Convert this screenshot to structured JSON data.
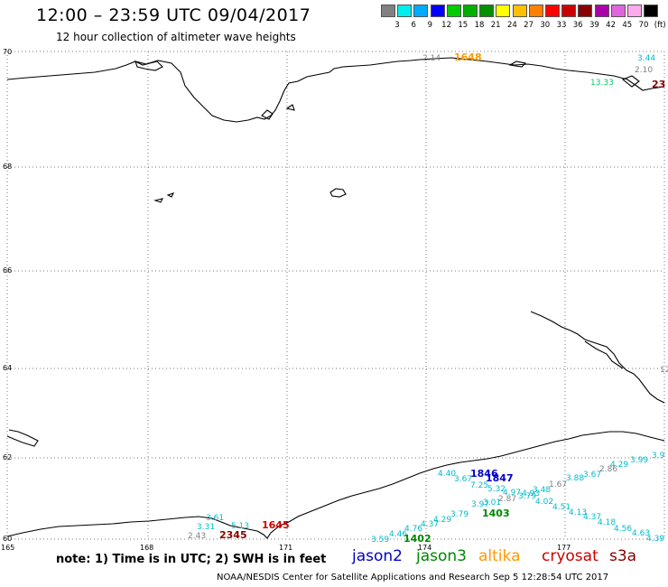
{
  "title": "12:00 – 23:59 UTC 09/04/2017",
  "subtitle": "12 hour collection of altimeter wave heights",
  "scale": {
    "unit": "(ft)",
    "colors": [
      "#808080",
      "#00eeee",
      "#00aaff",
      "#0000ff",
      "#00cc00",
      "#00b000",
      "#009000",
      "#ffff00",
      "#ffc000",
      "#ff8000",
      "#ff0000",
      "#cc0000",
      "#880000",
      "#aa00aa",
      "#dd66dd",
      "#ffaaee",
      "#000000"
    ],
    "labels": [
      "3",
      "6",
      "9",
      "12",
      "15",
      "18",
      "21",
      "24",
      "27",
      "30",
      "33",
      "36",
      "39",
      "42",
      "45",
      "70"
    ]
  },
  "axes": {
    "lat_labels": [
      "70",
      "68",
      "66",
      "64",
      "62",
      "60"
    ],
    "lon_labels": [
      "165",
      "168",
      "171",
      "174",
      "177"
    ]
  },
  "note": "note: 1) Time is in UTC; 2) SWH is in feet",
  "satellites": [
    {
      "name": "jason2",
      "color": "#0000cc"
    },
    {
      "name": "jason3",
      "color": "#008800"
    },
    {
      "name": "altika",
      "color": "#ff9900"
    },
    {
      "name": "cryosat",
      "color": "#cc0000"
    },
    {
      "name": "s3a",
      "color": "#880000"
    }
  ],
  "credit": "NOAA/NESDIS Center for Satellite Applications and Research   Sep  5 12:28:54 UTC 2017",
  "wave_labels": [
    {
      "t": "2.14",
      "c": "#808080"
    },
    {
      "t": "1648",
      "c": "#ff9900",
      "bold": true
    },
    {
      "t": "3.44",
      "c": "#00bbcc"
    },
    {
      "t": "2.10",
      "c": "#808080"
    },
    {
      "t": "13.33",
      "c": "#00cc66"
    },
    {
      "t": "23",
      "c": "#880000",
      "bold": true
    },
    {
      "t": "12",
      "c": "#808080"
    },
    {
      "t": "3.9",
      "c": "#00bbcc"
    },
    {
      "t": "3.99",
      "c": "#00bbcc"
    },
    {
      "t": "4.29",
      "c": "#00bbcc"
    },
    {
      "t": "2.86",
      "c": "#808080"
    },
    {
      "t": "3.67",
      "c": "#00bbcc"
    },
    {
      "t": "3.88",
      "c": "#00bbcc"
    },
    {
      "t": "1.67",
      "c": "#808080"
    },
    {
      "t": "3.48",
      "c": "#00bbcc"
    },
    {
      "t": "1846",
      "c": "#0000cc",
      "bold": true
    },
    {
      "t": "4.40",
      "c": "#00bbcc"
    },
    {
      "t": "3.67",
      "c": "#00bbcc"
    },
    {
      "t": "1847",
      "c": "#0000cc",
      "bold": true
    },
    {
      "t": "7.25",
      "c": "#00bbcc"
    },
    {
      "t": "5.32",
      "c": "#00bbcc"
    },
    {
      "t": "4.97",
      "c": "#00bbcc"
    },
    {
      "t": "3.79",
      "c": "#00bbcc"
    },
    {
      "t": "4.93",
      "c": "#00bbcc"
    },
    {
      "t": "2.87",
      "c": "#808080"
    },
    {
      "t": "4.02",
      "c": "#00bbcc"
    },
    {
      "t": "3.97",
      "c": "#00bbcc"
    },
    {
      "t": "3.01",
      "c": "#00bbcc"
    },
    {
      "t": "4.51",
      "c": "#00bbcc"
    },
    {
      "t": "1403",
      "c": "#008800",
      "bold": true
    },
    {
      "t": "3.79",
      "c": "#00bbcc"
    },
    {
      "t": "4.13",
      "c": "#00bbcc"
    },
    {
      "t": "4.29",
      "c": "#00bbcc"
    },
    {
      "t": "4.37",
      "c": "#00bbcc"
    },
    {
      "t": "4.37",
      "c": "#00bbcc"
    },
    {
      "t": "4.18",
      "c": "#00bbcc"
    },
    {
      "t": "4.76",
      "c": "#00bbcc"
    },
    {
      "t": "4.56",
      "c": "#00bbcc"
    },
    {
      "t": "4.46",
      "c": "#00bbcc"
    },
    {
      "t": "4.63",
      "c": "#00bbcc"
    },
    {
      "t": "3.59",
      "c": "#00bbcc"
    },
    {
      "t": "1402",
      "c": "#008800",
      "bold": true
    },
    {
      "t": "4.39",
      "c": "#00bbcc"
    },
    {
      "t": "3.61",
      "c": "#00bbcc"
    },
    {
      "t": "3.31",
      "c": "#00bbcc"
    },
    {
      "t": "5.13",
      "c": "#00bbcc"
    },
    {
      "t": "1645",
      "c": "#cc0000",
      "bold": true
    },
    {
      "t": "2.43",
      "c": "#808080"
    },
    {
      "t": "2345",
      "c": "#880000",
      "bold": true
    }
  ]
}
